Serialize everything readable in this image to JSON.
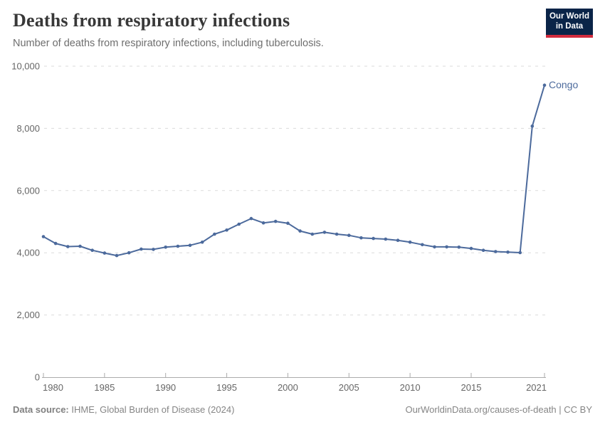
{
  "header": {
    "title": "Deaths from respiratory infections",
    "subtitle": "Number of deaths from respiratory infections, including tuberculosis."
  },
  "logo": {
    "line1": "Our World",
    "line2": "in Data"
  },
  "chart_data": {
    "type": "line",
    "title": "Deaths from respiratory infections",
    "subtitle": "Number of deaths from respiratory infections, including tuberculosis.",
    "xlabel": "",
    "ylabel": "",
    "ylim": [
      0,
      10000
    ],
    "yticks": [
      0,
      2000,
      4000,
      6000,
      8000,
      10000
    ],
    "ytick_labels": [
      "0",
      "2,000",
      "4,000",
      "6,000",
      "8,000",
      "10,000"
    ],
    "xtick_years": [
      1980,
      1985,
      1990,
      1995,
      2000,
      2005,
      2010,
      2015,
      2021
    ],
    "xrange": [
      1980,
      2021
    ],
    "grid": "horizontal-dashed",
    "legend_position": "end-of-line-label",
    "series": [
      {
        "name": "Congo",
        "x": [
          1980,
          1981,
          1982,
          1983,
          1984,
          1985,
          1986,
          1987,
          1988,
          1989,
          1990,
          1991,
          1992,
          1993,
          1994,
          1995,
          1996,
          1997,
          1998,
          1999,
          2000,
          2001,
          2002,
          2003,
          2004,
          2005,
          2006,
          2007,
          2008,
          2009,
          2010,
          2011,
          2012,
          2013,
          2014,
          2015,
          2016,
          2017,
          2018,
          2019,
          2020,
          2021
        ],
        "values": [
          4520,
          4300,
          4200,
          4210,
          4080,
          3990,
          3910,
          4000,
          4120,
          4110,
          4180,
          4210,
          4240,
          4340,
          4600,
          4730,
          4920,
          5100,
          4960,
          5010,
          4950,
          4700,
          4600,
          4660,
          4600,
          4560,
          4480,
          4460,
          4440,
          4400,
          4340,
          4260,
          4190,
          4190,
          4180,
          4140,
          4080,
          4040,
          4020,
          4005,
          8070,
          9390
        ]
      }
    ]
  },
  "colors": {
    "line": "#4C6A9C",
    "grid": "#DBDBDB",
    "axis": "#ABABAB",
    "tick_label": "#666666",
    "logo_bg": "#0A2448",
    "logo_accent": "#D22B3D",
    "footer": "#858585"
  },
  "footer": {
    "source_label": "Data source:",
    "source_text": " IHME, Global Burden of Disease (2024)",
    "link_text": "OurWorldinData.org/causes-of-death | CC BY"
  }
}
